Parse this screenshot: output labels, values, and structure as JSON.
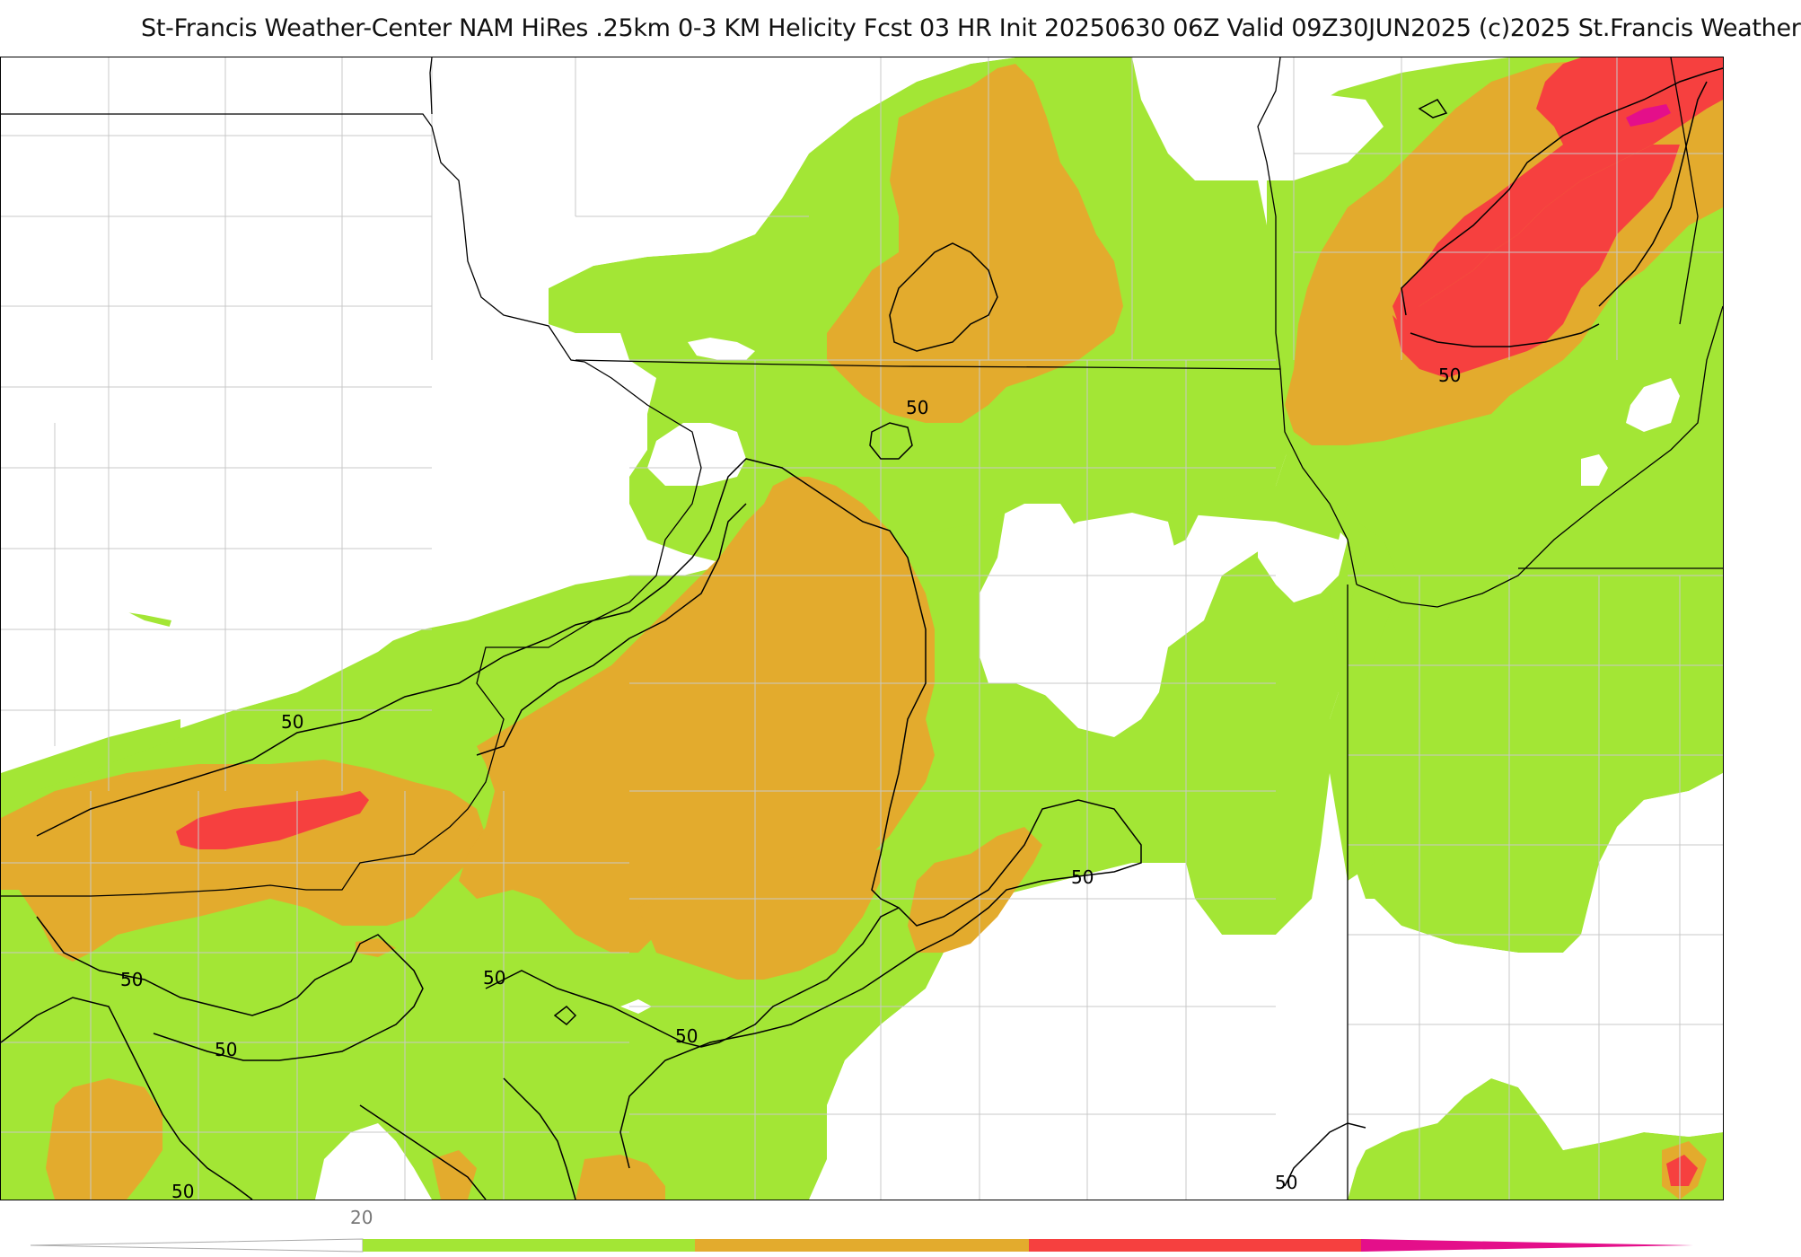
{
  "header": {
    "title": "St-Francis Weather-Center NAM HiRes .25km 0-3 KM Helicity Fcst 03 HR Init 20250630 06Z  Valid 09Z30JUN2025    (c)2025 St.Francis Weather"
  },
  "map": {
    "contour_labels": [
      "50",
      "50",
      "50",
      "50",
      "50",
      "50",
      "50",
      "50",
      "50",
      "50"
    ],
    "fill_colors": {
      "level_20": "#a3e635",
      "level_40": "#e3ab2d",
      "level_60": "#f6403f",
      "level_80": "#e40f8a"
    }
  },
  "colorbar": {
    "tick_label": "20",
    "colors": [
      "#a3e635",
      "#e3ab2d",
      "#f6403f",
      "#e40f8a"
    ]
  }
}
